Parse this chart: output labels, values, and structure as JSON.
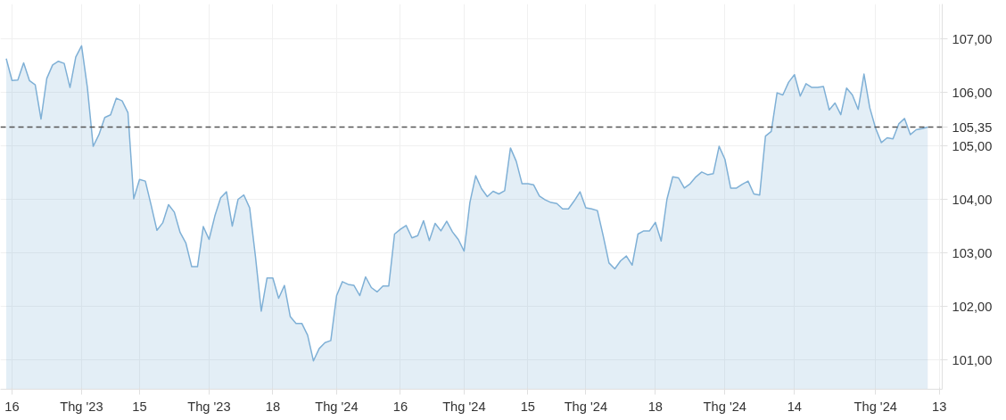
{
  "chart_data": {
    "type": "area",
    "categories": [
      null,
      "16",
      null,
      null,
      null,
      null,
      null,
      null,
      null,
      null,
      null,
      null,
      null,
      "Thg '23",
      null,
      null,
      null,
      null,
      null,
      null,
      null,
      null,
      null,
      "15",
      null,
      null,
      null,
      null,
      null,
      null,
      null,
      null,
      null,
      null,
      null,
      "Thg '23",
      null,
      null,
      null,
      null,
      null,
      null,
      null,
      null,
      null,
      null,
      "18",
      null,
      null,
      null,
      null,
      null,
      null,
      null,
      null,
      null,
      null,
      "Thg '24",
      null,
      null,
      null,
      null,
      null,
      null,
      null,
      null,
      null,
      null,
      "16",
      null,
      null,
      null,
      null,
      null,
      null,
      null,
      null,
      null,
      null,
      "Thg '24",
      null,
      null,
      null,
      null,
      null,
      null,
      null,
      null,
      null,
      null,
      "15",
      null,
      null,
      null,
      null,
      null,
      null,
      null,
      null,
      null,
      "Thg '24",
      null,
      null,
      null,
      null,
      null,
      null,
      null,
      null,
      null,
      null,
      null,
      "18",
      null,
      null,
      null,
      null,
      null,
      null,
      null,
      null,
      null,
      null,
      null,
      "Thg '24",
      null,
      null,
      null,
      null,
      null,
      null,
      null,
      null,
      null,
      null,
      null,
      "14",
      null,
      null,
      null,
      null,
      null,
      null,
      null,
      null,
      null,
      null,
      null,
      null,
      null,
      "Thg '24",
      null,
      null,
      null,
      null,
      null,
      null,
      null,
      null,
      null,
      null,
      "13"
    ],
    "series": [
      {
        "color": "#7fb0d6",
        "values": [
          106.63,
          106.22,
          106.23,
          106.55,
          106.22,
          106.14,
          105.5,
          106.26,
          106.51,
          106.58,
          106.54,
          106.09,
          106.66,
          106.87,
          106.09,
          104.99,
          105.21,
          105.53,
          105.58,
          105.89,
          105.84,
          105.62,
          104.01,
          104.37,
          104.34,
          103.89,
          103.42,
          103.56,
          103.9,
          103.76,
          103.38,
          103.18,
          102.74,
          102.74,
          103.49,
          103.25,
          103.69,
          104.03,
          104.14,
          103.5,
          104.0,
          104.08,
          103.84,
          102.93,
          101.91,
          102.53,
          102.53,
          102.15,
          102.39,
          101.81,
          101.68,
          101.68,
          101.46,
          100.98,
          101.21,
          101.32,
          101.36,
          102.2,
          102.46,
          102.41,
          102.39,
          102.2,
          102.55,
          102.35,
          102.27,
          102.38,
          102.38,
          103.35,
          103.44,
          103.51,
          103.28,
          103.32,
          103.6,
          103.23,
          103.55,
          103.41,
          103.59,
          103.39,
          103.25,
          103.03,
          103.94,
          104.44,
          104.2,
          104.05,
          104.15,
          104.1,
          104.16,
          104.96,
          104.71,
          104.29,
          104.29,
          104.27,
          104.06,
          103.99,
          103.94,
          103.92,
          103.82,
          103.82,
          103.97,
          104.14,
          103.84,
          103.82,
          103.79,
          103.32,
          102.81,
          102.7,
          102.85,
          102.94,
          102.77,
          103.35,
          103.41,
          103.41,
          103.57,
          103.22,
          104.0,
          104.42,
          104.4,
          104.21,
          104.29,
          104.42,
          104.51,
          104.46,
          104.48,
          104.99,
          104.75,
          104.21,
          104.21,
          104.28,
          104.34,
          104.1,
          104.08,
          105.18,
          105.27,
          105.99,
          105.95,
          106.19,
          106.33,
          105.93,
          106.16,
          106.09,
          106.09,
          106.11,
          105.67,
          105.8,
          105.58,
          106.08,
          105.95,
          105.68,
          106.34,
          105.71,
          105.33,
          105.06,
          105.15,
          105.13,
          105.41,
          105.51,
          105.21,
          105.3,
          105.32,
          105.35,
          null,
          null
        ]
      }
    ],
    "ylim": [
      100.45,
      107.65
    ],
    "yticks": [
      {
        "value": 101,
        "label": "101,00"
      },
      {
        "value": 102,
        "label": "102,00"
      },
      {
        "value": 103,
        "label": "103,00"
      },
      {
        "value": 104,
        "label": "104,00"
      },
      {
        "value": 105,
        "label": "105,00"
      },
      {
        "value": 106,
        "label": "106,00"
      },
      {
        "value": 107,
        "label": "107,00"
      }
    ],
    "ref_lines": [
      {
        "axis": "y",
        "value": 105.35,
        "label": "105,35",
        "color": "#555555",
        "line_style": "dashed"
      }
    ],
    "grid": true
  }
}
